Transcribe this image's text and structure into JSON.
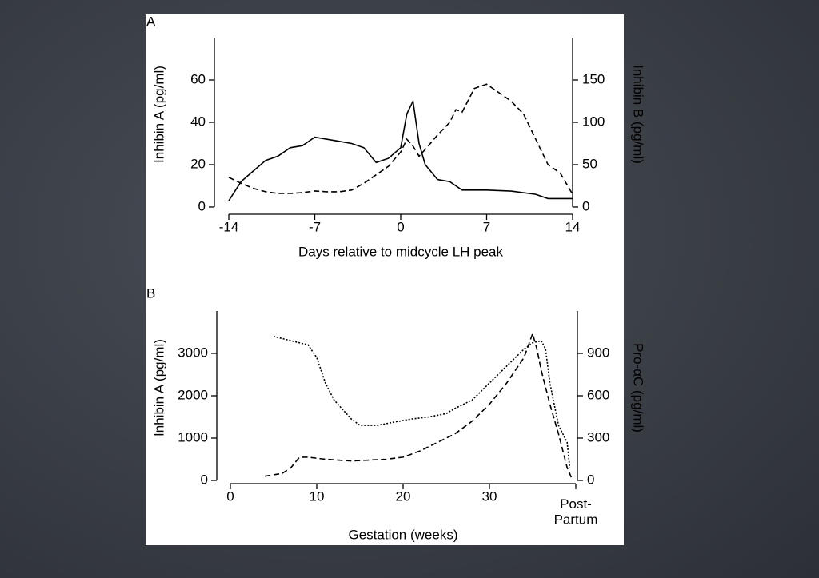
{
  "chart_data": [
    {
      "type": "line",
      "panel_label": "A",
      "xlabel": "Days relative to midcycle LH peak",
      "ylabel": "Inhibin A (pg/ml)",
      "y2label": "Inhibin B (pg/ml)",
      "xlim": [
        -14,
        14
      ],
      "xticks": [
        -14,
        -7,
        0,
        7,
        14
      ],
      "ylim": [
        0,
        80
      ],
      "yticks": [
        0,
        20,
        40,
        60
      ],
      "y2lim": [
        0,
        200
      ],
      "y2ticks": [
        0,
        50,
        100,
        150
      ],
      "series": [
        {
          "style": "solid",
          "color": "#000000",
          "x": [
            -14,
            -13,
            -12,
            -11,
            -10,
            -9,
            -8,
            -7,
            -6,
            -5,
            -4,
            -3,
            -2,
            -1,
            0,
            0.5,
            1,
            1.5,
            2,
            3,
            4,
            5,
            7,
            9,
            11,
            12,
            14
          ],
          "values": [
            3,
            12,
            17,
            22,
            24,
            28,
            29,
            33,
            32,
            31,
            30,
            28,
            21,
            23,
            28,
            44,
            50,
            30,
            20,
            13,
            12,
            8,
            8,
            7.5,
            6,
            4,
            4
          ]
        },
        {
          "style": "dashed",
          "color": "#000000",
          "axis": "y2",
          "x": [
            -14,
            -13,
            -12,
            -11,
            -10,
            -9,
            -8,
            -7,
            -6,
            -5,
            -4,
            -3,
            -2,
            -1,
            0,
            0.5,
            1,
            1.5,
            2,
            3,
            4,
            4.5,
            5,
            6,
            7,
            8,
            9,
            10,
            11,
            12,
            13,
            14
          ],
          "values": [
            35,
            28,
            22,
            18,
            16,
            16,
            17,
            19,
            18,
            18,
            20,
            28,
            38,
            48,
            65,
            80,
            72,
            60,
            68,
            85,
            100,
            115,
            112,
            140,
            145,
            135,
            125,
            110,
            80,
            50,
            40,
            15
          ]
        }
      ]
    },
    {
      "type": "line",
      "panel_label": "B",
      "xlabel": "Gestation (weeks)",
      "ylabel": "Inhibin A (pg/ml)",
      "y2label": "Pro-αC (pg/ml)",
      "xlim": [
        0,
        40
      ],
      "xticks": [
        0,
        10,
        20,
        30,
        {
          "value": 40,
          "label": "Post-Partum"
        }
      ],
      "ylim": [
        0,
        4000
      ],
      "yticks": [
        0,
        1000,
        2000,
        3000
      ],
      "y2lim": [
        0,
        1200
      ],
      "y2ticks": [
        0,
        300,
        600,
        900
      ],
      "series": [
        {
          "style": "dotted",
          "color": "#000000",
          "x": [
            5,
            7,
            9,
            10,
            11,
            12,
            14,
            15,
            17,
            19,
            21,
            23,
            25,
            26,
            28,
            30,
            32,
            34,
            35,
            36,
            36.5,
            37,
            38,
            39,
            39.3
          ],
          "values": [
            3400,
            3300,
            3200,
            2900,
            2300,
            1900,
            1450,
            1300,
            1300,
            1380,
            1450,
            1500,
            1580,
            1700,
            1900,
            2300,
            2700,
            3100,
            3250,
            3300,
            3100,
            2300,
            1300,
            900,
            300
          ]
        },
        {
          "style": "dashed",
          "color": "#000000",
          "axis": "y2",
          "x": [
            4,
            6,
            7,
            8,
            9,
            11,
            14,
            18,
            20,
            22,
            24,
            26,
            28,
            30,
            32,
            34,
            35,
            35.5,
            36,
            37,
            38,
            39,
            39.5
          ],
          "values": [
            30,
            50,
            90,
            165,
            165,
            150,
            138,
            150,
            165,
            210,
            270,
            330,
            420,
            540,
            690,
            870,
            1040,
            930,
            780,
            540,
            330,
            90,
            20
          ]
        }
      ]
    }
  ]
}
